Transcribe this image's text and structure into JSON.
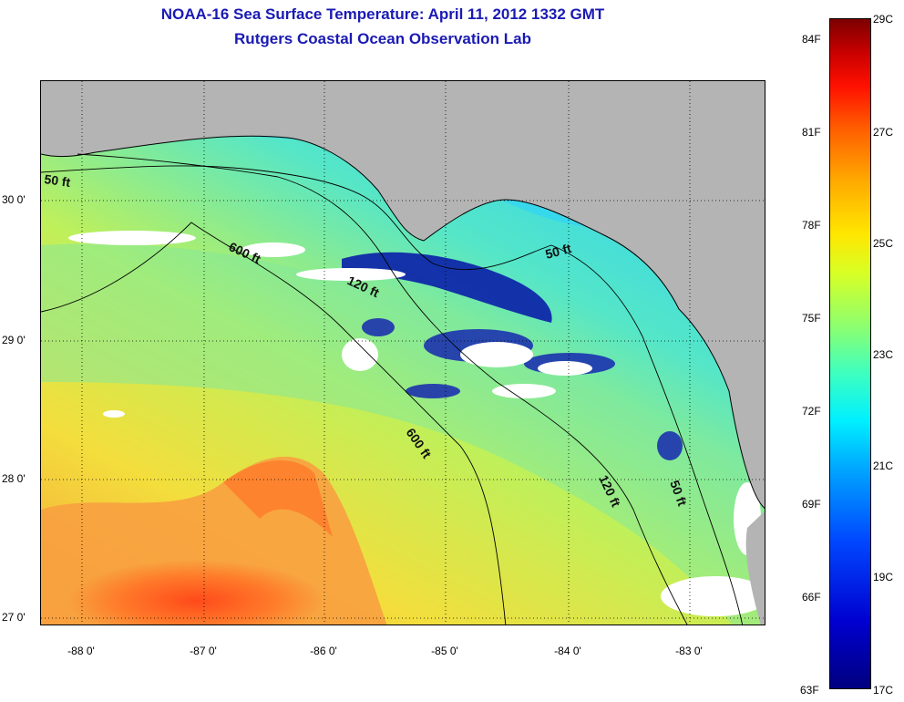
{
  "title": {
    "line1": "NOAA-16 Sea Surface Temperature:  April 11, 2012 1332 GMT",
    "line2": "Rutgers Coastal Ocean Observation Lab"
  },
  "map": {
    "latitude_labels": [
      "30 0'",
      "29 0'",
      "28 0'",
      "27 0'"
    ],
    "longitude_labels": [
      "-88 0'",
      "-87 0'",
      "-86 0'",
      "-85 0'",
      "-84 0'",
      "-83 0'"
    ],
    "contour_labels": [
      "50 ft",
      "600 ft",
      "120 ft",
      "50 ft",
      "600 ft",
      "120 ft",
      "50 ft"
    ],
    "land_color": "#b4b4b4",
    "cloud_color": "#ffffff"
  },
  "colorbar": {
    "fahrenheit_labels": [
      "84F",
      "81F",
      "78F",
      "75F",
      "72F",
      "69F",
      "66F",
      "63F"
    ],
    "celsius_labels": [
      "29C",
      "27C",
      "25C",
      "23C",
      "21C",
      "19C",
      "17C"
    ],
    "min_c": 17,
    "max_c": 29
  }
}
